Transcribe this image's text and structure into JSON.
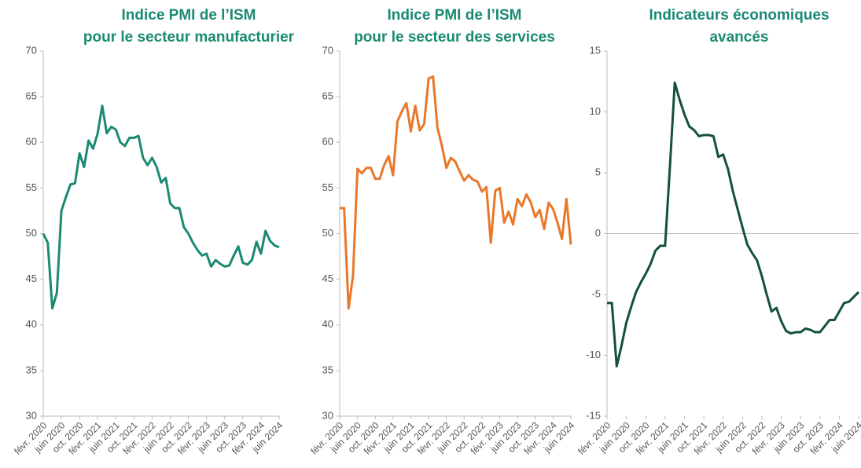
{
  "chart_data": [
    {
      "type": "line",
      "title": [
        "Indice PMI de l’ISM",
        "pour le secteur manufacturier"
      ],
      "categories": [
        "févr. 2020",
        null,
        null,
        null,
        "juin 2020",
        null,
        null,
        null,
        "oct. 2020",
        null,
        null,
        null,
        "févr. 2021",
        null,
        null,
        null,
        "juin 2021",
        null,
        null,
        null,
        "oct. 2021",
        null,
        null,
        null,
        "févr. 2022",
        null,
        null,
        null,
        "juin 2022",
        null,
        null,
        null,
        "oct. 2022",
        null,
        null,
        null,
        "févr. 2023",
        null,
        null,
        null,
        "juin 2023",
        null,
        null,
        null,
        "oct. 2023",
        null,
        null,
        null,
        "févr. 2024",
        null,
        null,
        null,
        "juin 2024"
      ],
      "series": [
        {
          "color": "#1a8a73",
          "values": [
            50,
            49,
            41.8,
            43.5,
            52.5,
            54,
            55.4,
            55.5,
            58.8,
            57.3,
            60.2,
            59.3,
            61,
            64,
            61,
            61.7,
            61.4,
            60,
            59.6,
            60.5,
            60.5,
            60.7,
            58.3,
            57.5,
            58.3,
            57.3,
            55.6,
            56.1,
            53.3,
            52.8,
            52.8,
            50.7,
            50,
            49,
            48.2,
            47.6,
            47.8,
            46.4,
            47.1,
            46.7,
            46.4,
            46.5,
            47.6,
            48.6,
            46.8,
            46.6,
            47.1,
            49.1,
            47.8,
            50.3,
            49.2,
            48.7,
            48.5
          ]
        }
      ],
      "ylim": [
        30,
        70
      ],
      "yticks": [
        30,
        35,
        40,
        45,
        50,
        55,
        60,
        65,
        70
      ]
    },
    {
      "type": "line",
      "title": [
        "Indice PMI de l’ISM",
        "pour le secteur des services"
      ],
      "categories": [
        "févr. 2020",
        null,
        null,
        null,
        "juin 2020",
        null,
        null,
        null,
        "oct. 2020",
        null,
        null,
        null,
        "févr. 2021",
        null,
        null,
        null,
        "juin 2021",
        null,
        null,
        null,
        "oct. 2021",
        null,
        null,
        null,
        "févr. 2022",
        null,
        null,
        null,
        "juin 2022",
        null,
        null,
        null,
        "oct. 2022",
        null,
        null,
        null,
        "févr. 2023",
        null,
        null,
        null,
        "juin 2023",
        null,
        null,
        null,
        "oct. 2023",
        null,
        null,
        null,
        "févr. 2024",
        null,
        null,
        null,
        "juin 2024"
      ],
      "series": [
        {
          "color": "#e8782a",
          "values": [
            52.8,
            52.8,
            41.8,
            45.4,
            57.1,
            56.6,
            57.2,
            57.2,
            56,
            56,
            57.5,
            58.5,
            56.4,
            62.3,
            63.4,
            64.3,
            61.2,
            64,
            61.3,
            62,
            67,
            67.2,
            61.6,
            59.6,
            57.2,
            58.3,
            57.9,
            56.8,
            55.8,
            56.4,
            55.9,
            55.7,
            54.6,
            55.1,
            49,
            54.7,
            55,
            51.2,
            52.4,
            51,
            53.8,
            53,
            54.3,
            53.4,
            51.8,
            52.6,
            50.5,
            53.4,
            52.7,
            51.2,
            49.4,
            53.8,
            48.8
          ]
        }
      ],
      "ylim": [
        30,
        70
      ],
      "yticks": [
        30,
        35,
        40,
        45,
        50,
        55,
        60,
        65,
        70
      ]
    },
    {
      "type": "line",
      "title": [
        "Indicateurs économiques",
        "avancés"
      ],
      "categories": [
        "févr. 2020",
        null,
        null,
        null,
        "juin 2020",
        null,
        null,
        null,
        "oct. 2020",
        null,
        null,
        null,
        "févr. 2021",
        null,
        null,
        null,
        "juin 2021",
        null,
        null,
        null,
        "oct. 2021",
        null,
        null,
        null,
        "févr. 2022",
        null,
        null,
        null,
        "juin 2022",
        null,
        null,
        null,
        "oct. 2022",
        null,
        null,
        null,
        "févr. 2023",
        null,
        null,
        null,
        "juin 2023",
        null,
        null,
        null,
        "oct. 2023",
        null,
        null,
        null,
        "févr. 2024",
        null,
        null,
        null,
        "juin 2024"
      ],
      "series": [
        {
          "color": "#144f3f",
          "values": [
            -5.7,
            -5.7,
            -10.9,
            -9.2,
            -7.3,
            -6,
            -4.8,
            -4,
            -3.3,
            -2.5,
            -1.4,
            -1,
            -1,
            5.5,
            12.4,
            11,
            9.8,
            8.8,
            8.5,
            8,
            8.1,
            8.1,
            8,
            6.3,
            6.5,
            5.3,
            3.5,
            2,
            0.5,
            -0.9,
            -1.6,
            -2.2,
            -3.5,
            -5,
            -6.4,
            -6.1,
            -7.2,
            -8,
            -8.2,
            -8.1,
            -8.1,
            -7.8,
            -7.9,
            -8.1,
            -8.1,
            -7.6,
            -7.1,
            -7.1,
            -6.4,
            -5.7,
            -5.6,
            -5.2,
            -4.8
          ]
        }
      ],
      "ylim": [
        -15,
        15
      ],
      "yticks": [
        -15,
        -10,
        -5,
        0,
        5,
        10,
        15
      ]
    }
  ]
}
